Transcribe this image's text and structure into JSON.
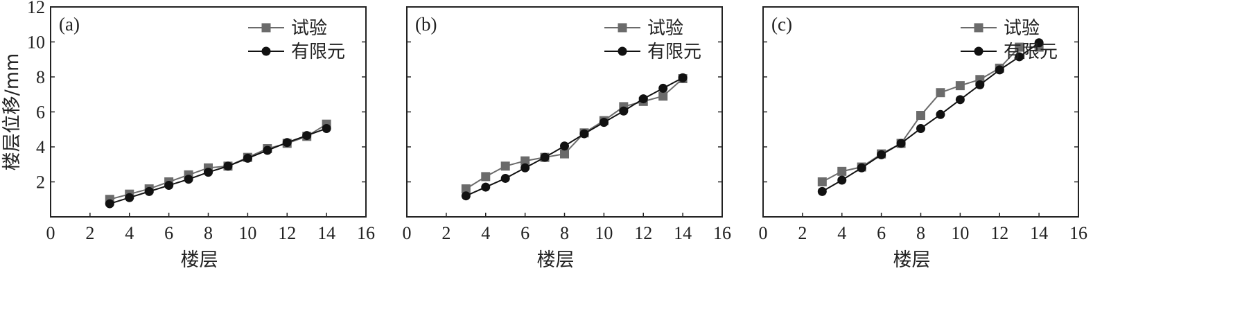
{
  "chart_data": [
    {
      "type": "line",
      "panel_label": "(a)",
      "xlabel": "楼层",
      "ylabel": "楼层位移/mm",
      "xlim": [
        0,
        16
      ],
      "ylim": [
        0,
        12
      ],
      "xticks": [
        "0",
        "2",
        "4",
        "6",
        "8",
        "10",
        "12",
        "14",
        "16"
      ],
      "yticks": [
        "2",
        "4",
        "6",
        "8",
        "10",
        "12"
      ],
      "legend_position": "top-right",
      "x": [
        3,
        4,
        5,
        6,
        7,
        8,
        9,
        10,
        11,
        12,
        13,
        14
      ],
      "series": [
        {
          "name": "试验",
          "marker": "square",
          "color": "#6b6b6b",
          "values": [
            1.0,
            1.3,
            1.6,
            2.0,
            2.4,
            2.8,
            2.9,
            3.4,
            3.9,
            4.2,
            4.6,
            5.3
          ]
        },
        {
          "name": "有限元",
          "marker": "circle",
          "color": "#111111",
          "values": [
            0.75,
            1.1,
            1.45,
            1.8,
            2.15,
            2.55,
            2.9,
            3.35,
            3.8,
            4.25,
            4.65,
            5.05
          ]
        }
      ]
    },
    {
      "type": "line",
      "panel_label": "(b)",
      "xlabel": "楼层",
      "ylabel": "",
      "xlim": [
        0,
        16
      ],
      "ylim": [
        0,
        12
      ],
      "xticks": [
        "0",
        "2",
        "4",
        "6",
        "8",
        "10",
        "12",
        "14",
        "16"
      ],
      "yticks": [],
      "legend_position": "top-right",
      "x": [
        3,
        4,
        5,
        6,
        7,
        8,
        9,
        10,
        11,
        12,
        13,
        14
      ],
      "series": [
        {
          "name": "试验",
          "marker": "square",
          "color": "#6b6b6b",
          "values": [
            1.6,
            2.3,
            2.9,
            3.2,
            3.4,
            3.6,
            4.8,
            5.5,
            6.3,
            6.6,
            6.9,
            7.9
          ]
        },
        {
          "name": "有限元",
          "marker": "circle",
          "color": "#111111",
          "values": [
            1.2,
            1.7,
            2.2,
            2.8,
            3.4,
            4.05,
            4.75,
            5.4,
            6.05,
            6.75,
            7.35,
            7.95
          ]
        }
      ]
    },
    {
      "type": "line",
      "panel_label": "(c)",
      "xlabel": "楼层",
      "ylabel": "",
      "xlim": [
        0,
        16
      ],
      "ylim": [
        0,
        12
      ],
      "xticks": [
        "0",
        "2",
        "4",
        "6",
        "8",
        "10",
        "12",
        "14",
        "16"
      ],
      "yticks": [],
      "legend_position": "top-right",
      "x": [
        3,
        4,
        5,
        6,
        7,
        8,
        9,
        10,
        11,
        12,
        13,
        14
      ],
      "series": [
        {
          "name": "试验",
          "marker": "square",
          "color": "#6b6b6b",
          "values": [
            2.0,
            2.6,
            2.85,
            3.6,
            4.2,
            5.8,
            7.1,
            7.5,
            7.85,
            8.5,
            9.7,
            9.7
          ]
        },
        {
          "name": "有限元",
          "marker": "circle",
          "color": "#111111",
          "values": [
            1.45,
            2.1,
            2.8,
            3.55,
            4.2,
            5.05,
            5.85,
            6.7,
            7.55,
            8.4,
            9.15,
            9.95
          ]
        }
      ]
    }
  ]
}
